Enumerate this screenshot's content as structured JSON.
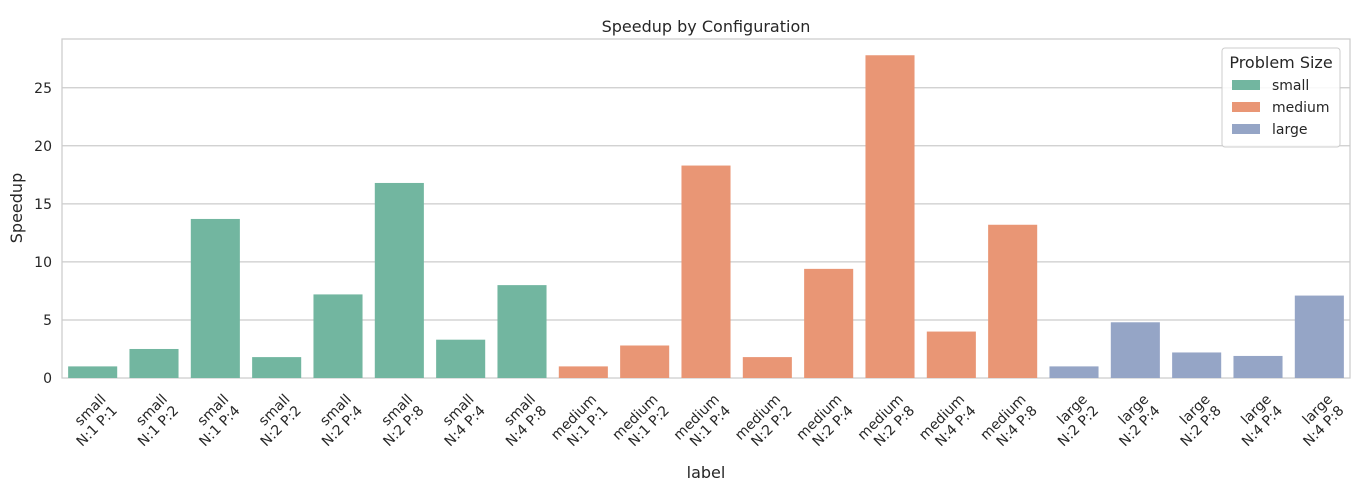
{
  "chart_data": {
    "type": "bar",
    "title": "Speedup by Configuration",
    "xlabel": "label",
    "ylabel": "Speedup",
    "ylim": [
      0,
      29.2
    ],
    "yticks": [
      0,
      5,
      10,
      15,
      20,
      25
    ],
    "grid": true,
    "legend_title": "Problem Size",
    "legend_position": "top-right",
    "groups": [
      {
        "name": "small",
        "color": "#72b6a0"
      },
      {
        "name": "medium",
        "color": "#e99675"
      },
      {
        "name": "large",
        "color": "#95a5c6"
      }
    ],
    "bars": [
      {
        "label": [
          "small",
          "N:1 P:1"
        ],
        "group": "small",
        "value": 1.0
      },
      {
        "label": [
          "small",
          "N:1 P:2"
        ],
        "group": "small",
        "value": 2.5
      },
      {
        "label": [
          "small",
          "N:1 P:4"
        ],
        "group": "small",
        "value": 13.7
      },
      {
        "label": [
          "small",
          "N:2 P:2"
        ],
        "group": "small",
        "value": 1.8
      },
      {
        "label": [
          "small",
          "N:2 P:4"
        ],
        "group": "small",
        "value": 7.2
      },
      {
        "label": [
          "small",
          "N:2 P:8"
        ],
        "group": "small",
        "value": 16.8
      },
      {
        "label": [
          "small",
          "N:4 P:4"
        ],
        "group": "small",
        "value": 3.3
      },
      {
        "label": [
          "small",
          "N:4 P:8"
        ],
        "group": "small",
        "value": 8.0
      },
      {
        "label": [
          "medium",
          "N:1 P:1"
        ],
        "group": "medium",
        "value": 1.0
      },
      {
        "label": [
          "medium",
          "N:1 P:2"
        ],
        "group": "medium",
        "value": 2.8
      },
      {
        "label": [
          "medium",
          "N:1 P:4"
        ],
        "group": "medium",
        "value": 18.3
      },
      {
        "label": [
          "medium",
          "N:2 P:2"
        ],
        "group": "medium",
        "value": 1.8
      },
      {
        "label": [
          "medium",
          "N:2 P:4"
        ],
        "group": "medium",
        "value": 9.4
      },
      {
        "label": [
          "medium",
          "N:2 P:8"
        ],
        "group": "medium",
        "value": 27.8
      },
      {
        "label": [
          "medium",
          "N:4 P:4"
        ],
        "group": "medium",
        "value": 4.0
      },
      {
        "label": [
          "medium",
          "N:4 P:8"
        ],
        "group": "medium",
        "value": 13.2
      },
      {
        "label": [
          "large",
          "N:2 P:2"
        ],
        "group": "large",
        "value": 1.0
      },
      {
        "label": [
          "large",
          "N:2 P:4"
        ],
        "group": "large",
        "value": 4.8
      },
      {
        "label": [
          "large",
          "N:2 P:8"
        ],
        "group": "large",
        "value": 2.2
      },
      {
        "label": [
          "large",
          "N:4 P:4"
        ],
        "group": "large",
        "value": 1.9
      },
      {
        "label": [
          "large",
          "N:4 P:8"
        ],
        "group": "large",
        "value": 7.1
      }
    ]
  }
}
